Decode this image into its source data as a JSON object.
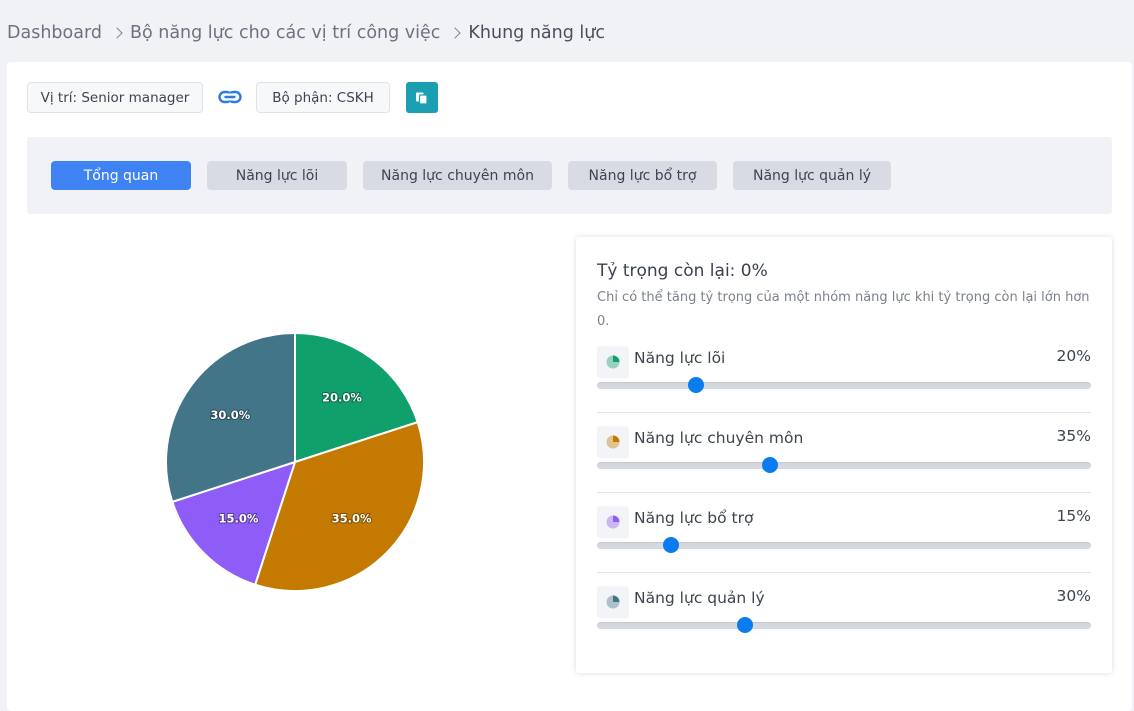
{
  "breadcrumb": {
    "items": [
      {
        "label": "Dashboard"
      },
      {
        "label": "Bộ năng lực cho các vị trí công việc"
      },
      {
        "label": "Khung năng lực"
      }
    ]
  },
  "filters": {
    "position": "Vị trí: Senior manager",
    "department": "Bộ phận: CSKH",
    "link_icon": "link-icon",
    "copy_icon": "copy-icon"
  },
  "tabs": [
    {
      "label": "Tổng quan",
      "active": true
    },
    {
      "label": "Năng lực lõi",
      "active": false
    },
    {
      "label": "Năng lực chuyên môn",
      "active": false
    },
    {
      "label": "Năng lực bổ trợ",
      "active": false
    },
    {
      "label": "Năng lực quản lý",
      "active": false
    }
  ],
  "weights": {
    "title": "Tỷ trọng còn lại: 0%",
    "hint": "Chỉ có thể tăng tỷ trọng của một nhóm năng lực khi tỷ trọng còn lại lớn hơn 0.",
    "groups": [
      {
        "name": "Năng lực lõi",
        "value_label": "20%",
        "value": 20,
        "color": "#0fa06b",
        "icon": "pie-chart-icon"
      },
      {
        "name": "Năng lực chuyên môn",
        "value_label": "35%",
        "value": 35,
        "color": "#c47a00",
        "icon": "pie-chart-icon"
      },
      {
        "name": "Năng lực bổ trợ",
        "value_label": "15%",
        "value": 15,
        "color": "#8e5cf6",
        "icon": "pie-chart-icon"
      },
      {
        "name": "Năng lực quản lý",
        "value_label": "30%",
        "value": 30,
        "color": "#437589",
        "icon": "pie-chart-icon"
      }
    ]
  },
  "chart_data": {
    "type": "pie",
    "categories": [
      "Năng lực lõi",
      "Năng lực chuyên môn",
      "Năng lực bổ trợ",
      "Năng lực quản lý"
    ],
    "values": [
      20,
      35,
      15,
      30
    ],
    "labels": [
      "20.0%",
      "35.0%",
      "15.0%",
      "30.0%"
    ],
    "colors": [
      "#0fa06b",
      "#c47a00",
      "#8e5cf6",
      "#437589"
    ],
    "start_angle": "12 o'clock",
    "direction": "clockwise"
  }
}
